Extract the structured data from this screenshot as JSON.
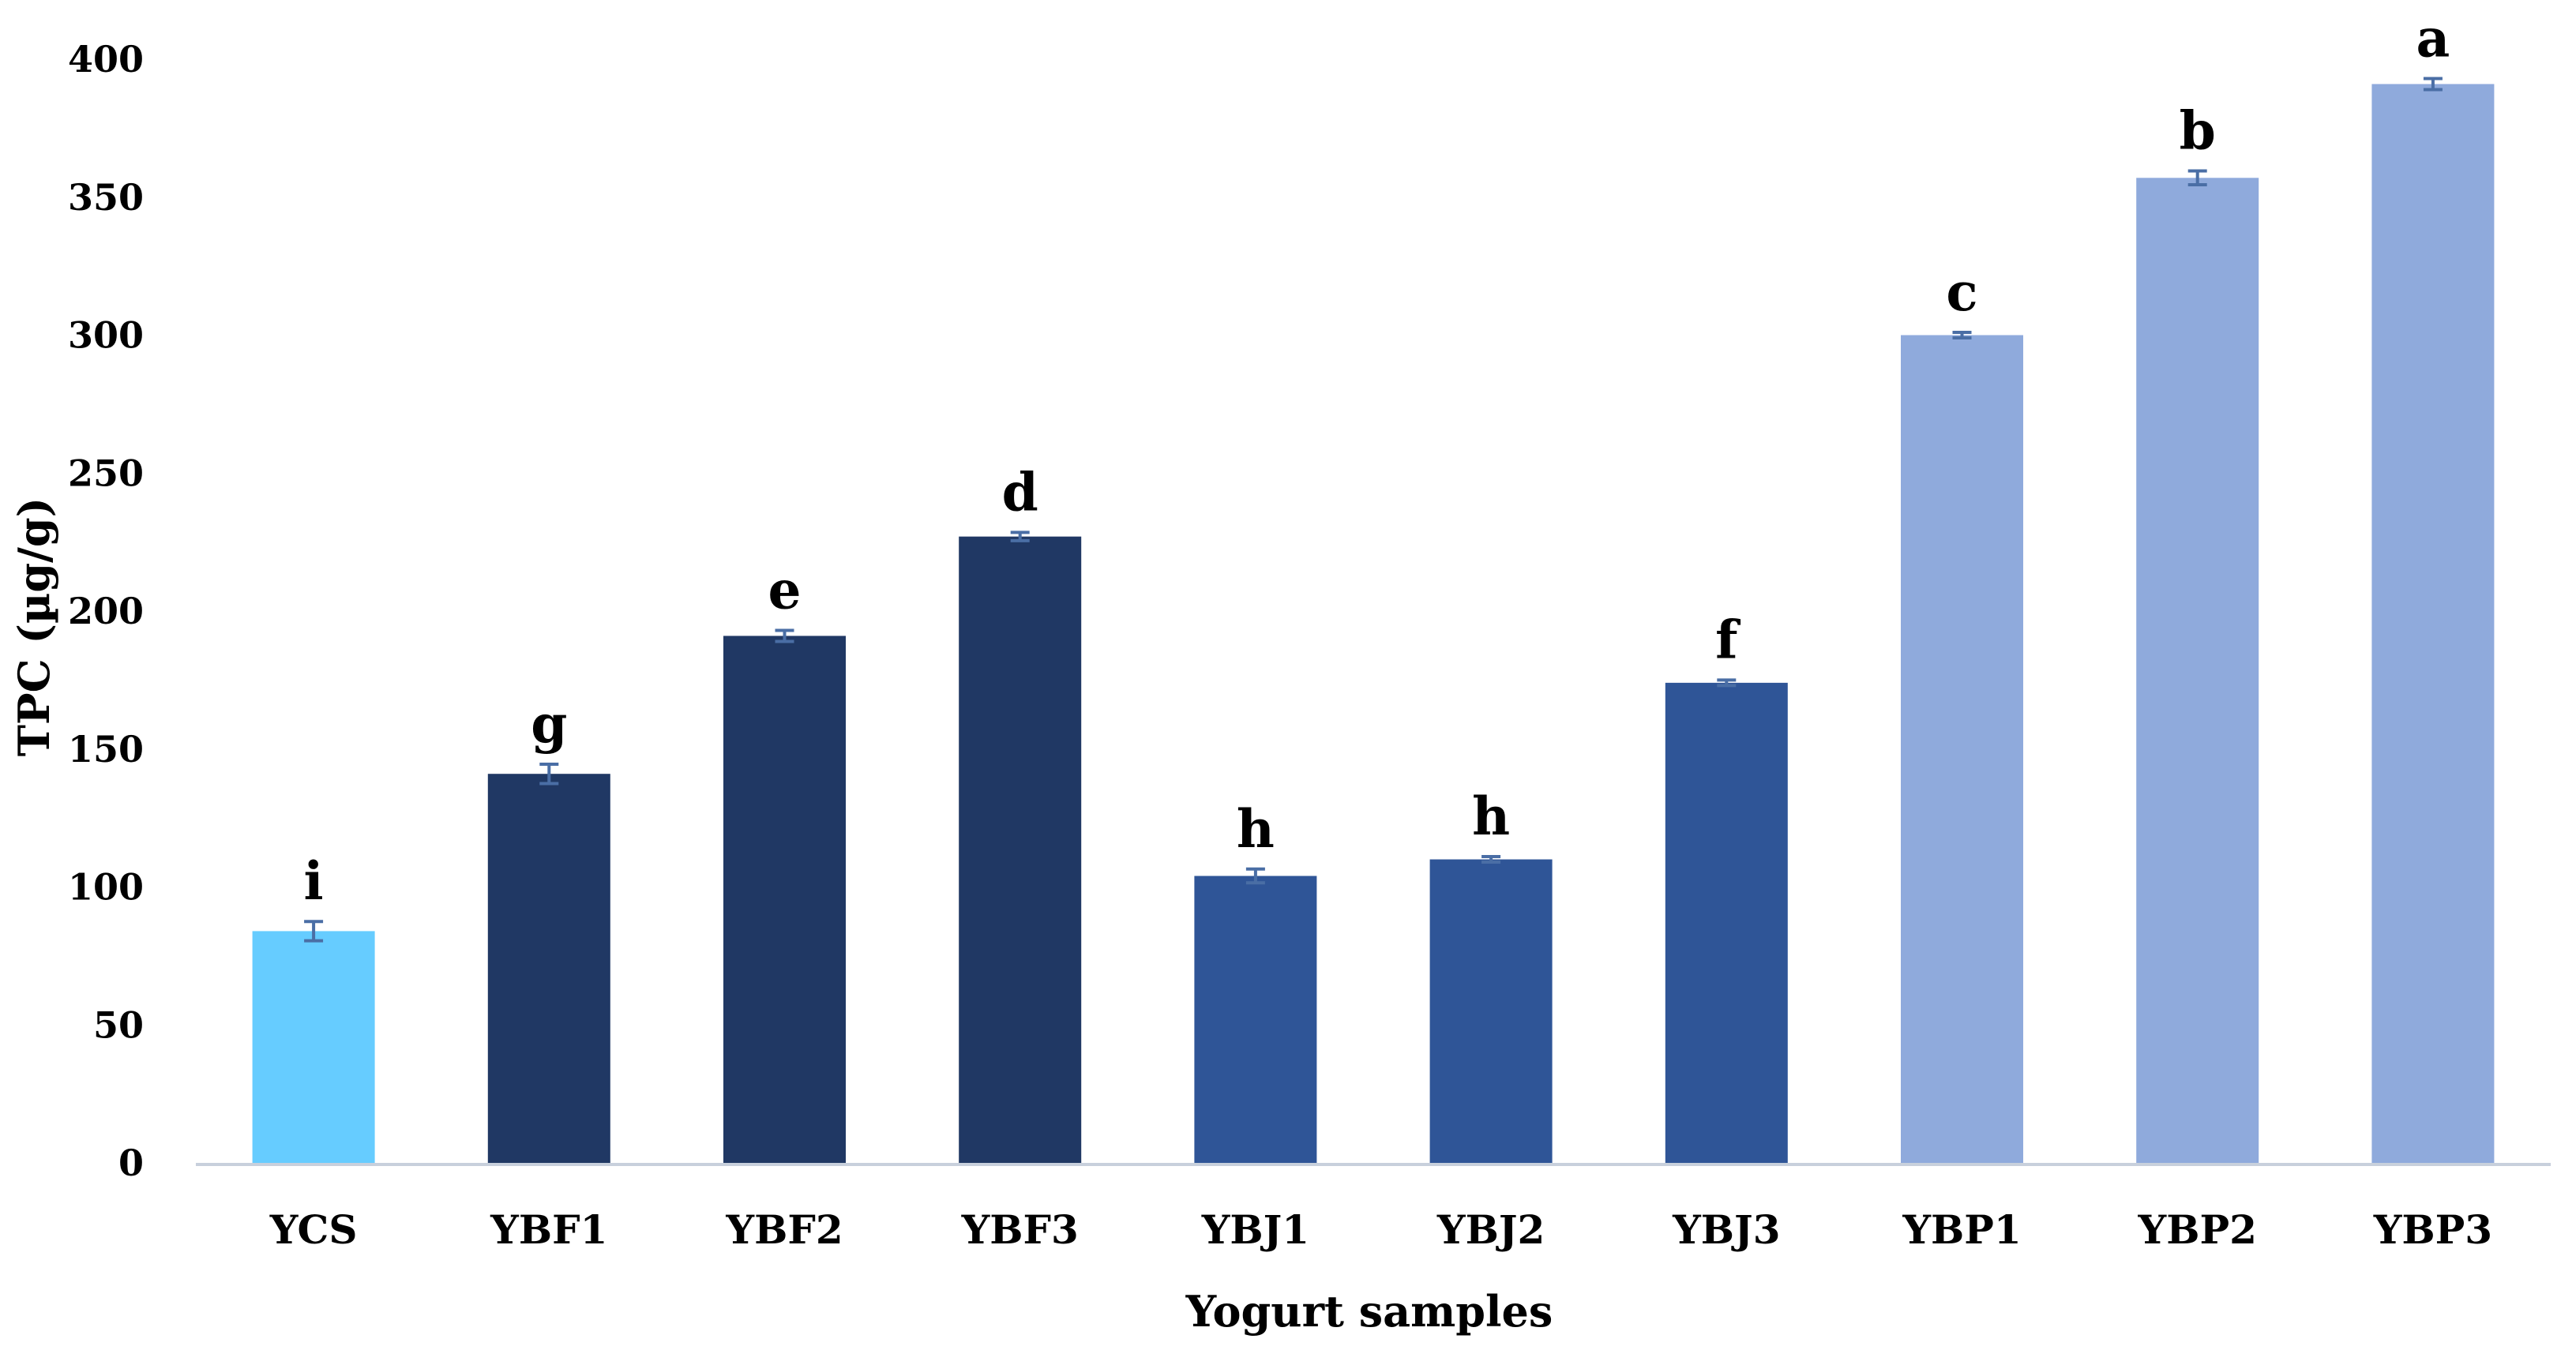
{
  "chart_data": {
    "type": "bar",
    "title": "",
    "xlabel": "Yogurt samples",
    "ylabel": "TPC  (µg/g)",
    "ylim": [
      0,
      400
    ],
    "yticks": [
      0,
      50,
      100,
      150,
      200,
      250,
      300,
      350,
      400
    ],
    "ytick_labels": [
      "0",
      "50",
      "100",
      "150",
      "200",
      "250",
      "300",
      "350",
      "400"
    ],
    "grid": false,
    "legend": "none",
    "categories": [
      "YCS",
      "YBF1",
      "YBF2",
      "YBF3",
      "YBJ1",
      "YBJ2",
      "YBJ3",
      "YBP1",
      "YBP2",
      "YBP3"
    ],
    "values": [
      84,
      141,
      191,
      227,
      104,
      110,
      174,
      300,
      357,
      391
    ],
    "errors": [
      3.5,
      3.5,
      2,
      1.5,
      2.5,
      1,
      1,
      1,
      2.5,
      2
    ],
    "significance_letters": [
      "i",
      "g",
      "e",
      "d",
      "h",
      "h",
      "f",
      "c",
      "b",
      "a"
    ],
    "bar_colors": [
      "#66ccff",
      "#203864",
      "#203864",
      "#203864",
      "#2f5597",
      "#2f5597",
      "#2f5597",
      "#8faadc",
      "#8faadc",
      "#8faadc"
    ],
    "error_bar_color": "#4a6ea5",
    "axis_color": "#c8d0dc"
  }
}
